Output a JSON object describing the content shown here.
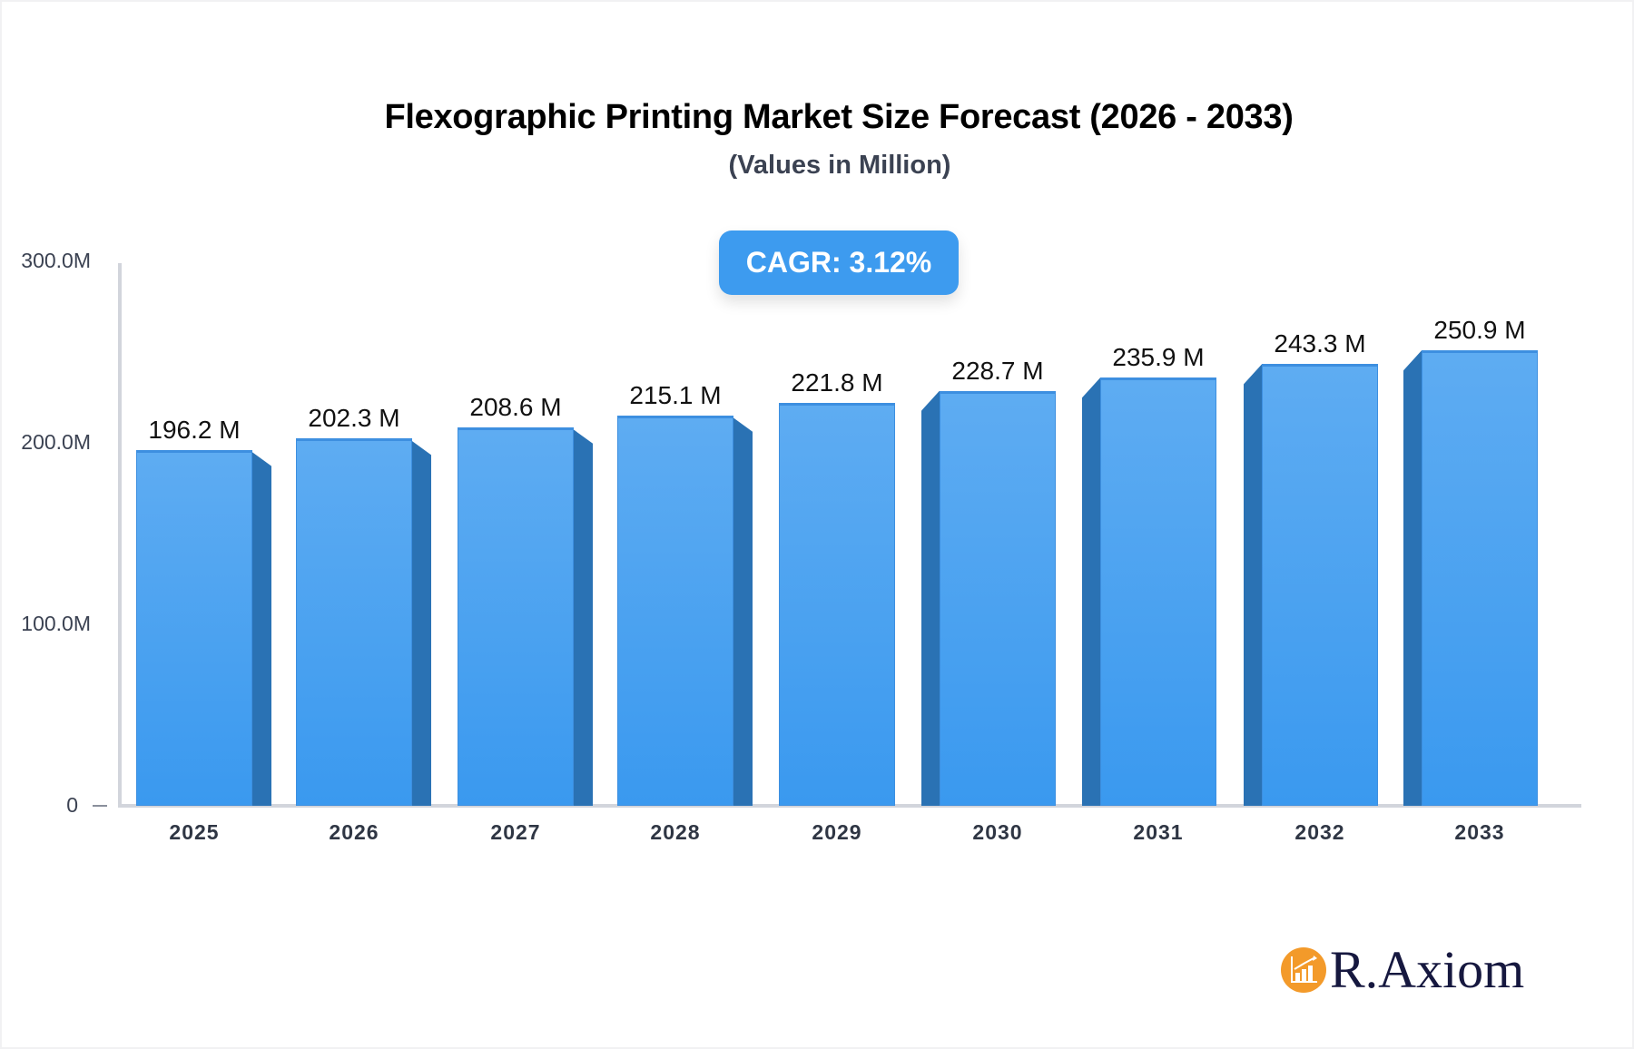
{
  "title": "Flexographic Printing Market Size Forecast (2026 - 2033)",
  "subtitle": "(Values in Million)",
  "cagr_label": "CAGR: 3.12%",
  "brand": {
    "name": "R.Axiom",
    "logo_icon": "bar-chart-growth-icon",
    "logo_color": "#f39a2a",
    "text_color": "#16183f"
  },
  "colors": {
    "bar_front": "#4ea3f1",
    "bar_side": "#2a72b4",
    "badge": "#3d9bef",
    "axis": "#d2d5dc"
  },
  "y_ticks": [
    "300.0M",
    "200.0M",
    "100.0M",
    "0"
  ],
  "bars": [
    {
      "year": "2025",
      "label": "196.2 M"
    },
    {
      "year": "2026",
      "label": "202.3 M"
    },
    {
      "year": "2027",
      "label": "208.6 M"
    },
    {
      "year": "2028",
      "label": "215.1 M"
    },
    {
      "year": "2029",
      "label": "221.8 M"
    },
    {
      "year": "2030",
      "label": "228.7 M"
    },
    {
      "year": "2031",
      "label": "235.9 M"
    },
    {
      "year": "2032",
      "label": "243.3 M"
    },
    {
      "year": "2033",
      "label": "250.9 M"
    }
  ],
  "chart_data": {
    "type": "bar",
    "title": "Flexographic Printing Market Size Forecast (2026 - 2033)",
    "subtitle": "(Values in Million)",
    "categories": [
      "2025",
      "2026",
      "2027",
      "2028",
      "2029",
      "2030",
      "2031",
      "2032",
      "2033"
    ],
    "values": [
      196.2,
      202.3,
      208.6,
      215.1,
      221.8,
      228.7,
      235.9,
      243.3,
      250.9
    ],
    "units": "M",
    "xlabel": "",
    "ylabel": "",
    "ylim": [
      0,
      300
    ],
    "y_tick_labels": [
      "0",
      "100.0M",
      "200.0M",
      "300.0M"
    ],
    "grid": false,
    "legend": "none",
    "annotations": [
      "CAGR: 3.12%"
    ],
    "style": "3d-perspective bars"
  }
}
